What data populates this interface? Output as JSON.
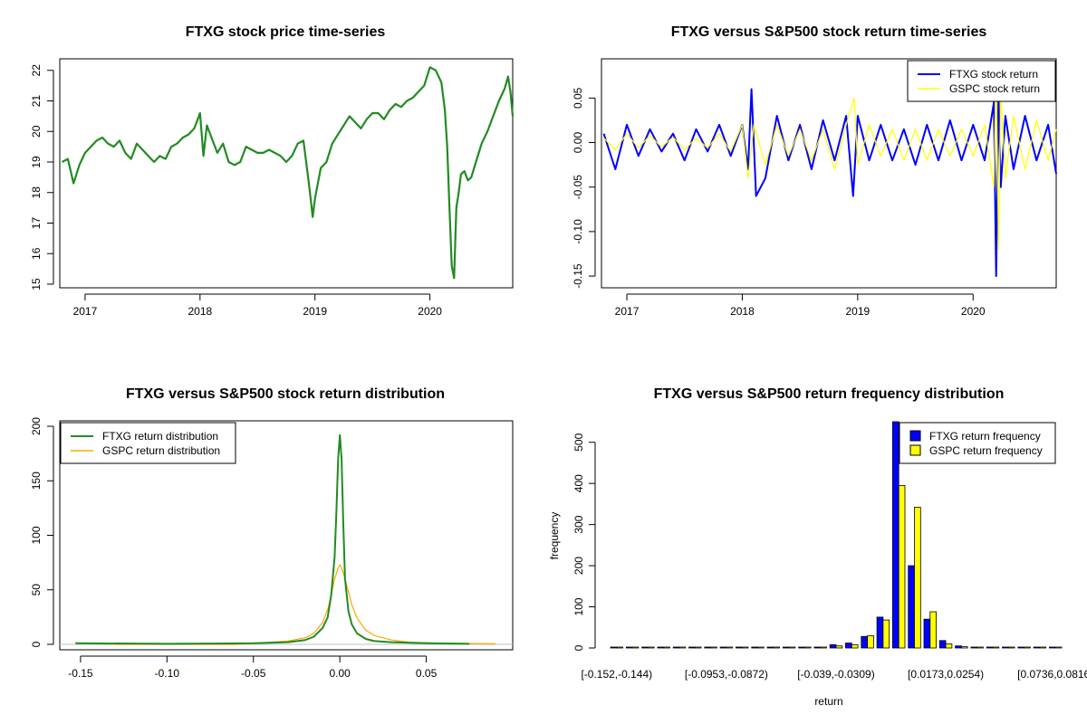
{
  "panels": {
    "price": {
      "title": "FTXG stock price time-series",
      "color": "#228B22"
    },
    "returns": {
      "title": "FTXG versus S&P500 stock return time-series",
      "legend": [
        "FTXG stock return",
        "GSPC stock return"
      ],
      "colors": [
        "#0000FF",
        "#FFFF00"
      ]
    },
    "density": {
      "title": "FTXG versus S&P500 stock return distribution",
      "legend": [
        "FTXG return distribution",
        "GSPC return distribution"
      ],
      "colors": [
        "#228B22",
        "#FFA500"
      ]
    },
    "freq": {
      "title": "FTXG versus S&P500 return frequency distribution",
      "legend": [
        "FTXG return frequency",
        "GSPC return frequency"
      ],
      "colors": [
        "#0000FF",
        "#FFFF00"
      ],
      "xlabel": "return",
      "ylabel": "frequency"
    }
  },
  "chart_data": [
    {
      "type": "line",
      "title": "FTXG stock price time-series",
      "xlim": [
        2016.78,
        2020.72
      ],
      "ylim": [
        15,
        22.2
      ],
      "x_ticks": [
        2017,
        2018,
        2019,
        2020
      ],
      "x_tick_labels": [
        "2017",
        "2018",
        "2019",
        "2020"
      ],
      "y_ticks": [
        15,
        16,
        17,
        18,
        19,
        20,
        21,
        22
      ],
      "y_tick_labels": [
        "15",
        "16",
        "17",
        "18",
        "19",
        "20",
        "21",
        "22"
      ],
      "x": [
        2016.8,
        2016.85,
        2016.9,
        2016.95,
        2017.0,
        2017.05,
        2017.1,
        2017.15,
        2017.2,
        2017.25,
        2017.3,
        2017.35,
        2017.4,
        2017.45,
        2017.5,
        2017.55,
        2017.6,
        2017.65,
        2017.7,
        2017.75,
        2017.8,
        2017.85,
        2017.9,
        2017.95,
        2018.0,
        2018.03,
        2018.06,
        2018.1,
        2018.15,
        2018.2,
        2018.25,
        2018.3,
        2018.35,
        2018.4,
        2018.45,
        2018.5,
        2018.55,
        2018.6,
        2018.65,
        2018.7,
        2018.75,
        2018.8,
        2018.85,
        2018.9,
        2018.95,
        2018.98,
        2019.0,
        2019.05,
        2019.1,
        2019.15,
        2019.2,
        2019.25,
        2019.3,
        2019.35,
        2019.4,
        2019.45,
        2019.5,
        2019.55,
        2019.6,
        2019.65,
        2019.7,
        2019.75,
        2019.8,
        2019.85,
        2019.9,
        2019.95,
        2020.0,
        2020.05,
        2020.1,
        2020.13,
        2020.15,
        2020.17,
        2020.19,
        2020.21,
        2020.23,
        2020.25,
        2020.27,
        2020.3,
        2020.33,
        2020.36,
        2020.4,
        2020.45,
        2020.5,
        2020.55,
        2020.6,
        2020.65,
        2020.68,
        2020.7,
        2020.72
      ],
      "y": [
        19.0,
        19.1,
        18.3,
        18.9,
        19.3,
        19.5,
        19.7,
        19.8,
        19.6,
        19.5,
        19.7,
        19.3,
        19.1,
        19.6,
        19.4,
        19.2,
        19.0,
        19.2,
        19.1,
        19.5,
        19.6,
        19.8,
        19.9,
        20.1,
        20.6,
        19.2,
        20.2,
        19.8,
        19.3,
        19.6,
        19.0,
        18.9,
        19.0,
        19.5,
        19.4,
        19.3,
        19.3,
        19.4,
        19.3,
        19.2,
        19.0,
        19.2,
        19.6,
        19.7,
        18.2,
        17.2,
        17.8,
        18.8,
        19.0,
        19.6,
        19.9,
        20.2,
        20.5,
        20.3,
        20.1,
        20.4,
        20.6,
        20.6,
        20.4,
        20.7,
        20.9,
        20.8,
        21.0,
        21.1,
        21.3,
        21.5,
        22.1,
        22.0,
        21.6,
        20.7,
        19.5,
        17.5,
        15.6,
        15.2,
        17.5,
        18.0,
        18.6,
        18.7,
        18.4,
        18.5,
        19.0,
        19.6,
        20.0,
        20.5,
        21.0,
        21.4,
        21.8,
        21.3,
        20.5
      ]
    },
    {
      "type": "line",
      "title": "FTXG versus S&P500 stock return time-series",
      "xlim": [
        2016.78,
        2020.72
      ],
      "ylim": [
        -0.155,
        0.09
      ],
      "x_ticks": [
        2017,
        2018,
        2019,
        2020
      ],
      "x_tick_labels": [
        "2017",
        "2018",
        "2019",
        "2020"
      ],
      "y_ticks": [
        -0.15,
        -0.1,
        -0.05,
        0.0,
        0.05
      ],
      "y_tick_labels": [
        "-0.15",
        "-0.10",
        "-0.05",
        "0.00",
        "0.05"
      ],
      "series": [
        {
          "name": "FTXG stock return",
          "x": [
            2016.8,
            2016.9,
            2017.0,
            2017.1,
            2017.2,
            2017.3,
            2017.4,
            2017.5,
            2017.6,
            2017.7,
            2017.8,
            2017.9,
            2018.0,
            2018.05,
            2018.08,
            2018.12,
            2018.2,
            2018.3,
            2018.4,
            2018.5,
            2018.6,
            2018.7,
            2018.8,
            2018.9,
            2018.96,
            2019.0,
            2019.1,
            2019.2,
            2019.3,
            2019.4,
            2019.5,
            2019.6,
            2019.7,
            2019.8,
            2019.9,
            2020.0,
            2020.1,
            2020.18,
            2020.2,
            2020.22,
            2020.24,
            2020.28,
            2020.35,
            2020.45,
            2020.55,
            2020.65,
            2020.72
          ],
          "y": [
            0.01,
            -0.03,
            0.02,
            -0.015,
            0.015,
            -0.01,
            0.01,
            -0.02,
            0.015,
            -0.01,
            0.02,
            -0.015,
            0.02,
            -0.03,
            0.06,
            -0.06,
            -0.04,
            0.03,
            -0.02,
            0.02,
            -0.03,
            0.025,
            -0.02,
            0.03,
            -0.06,
            0.03,
            -0.02,
            0.02,
            -0.02,
            0.015,
            -0.025,
            0.02,
            -0.02,
            0.025,
            -0.02,
            0.02,
            -0.02,
            0.045,
            -0.15,
            0.055,
            -0.05,
            0.03,
            -0.03,
            0.03,
            -0.02,
            0.02,
            -0.035
          ]
        },
        {
          "name": "GSPC stock return",
          "x": [
            2016.8,
            2016.9,
            2017.0,
            2017.1,
            2017.2,
            2017.3,
            2017.4,
            2017.5,
            2017.6,
            2017.7,
            2017.8,
            2017.9,
            2018.0,
            2018.05,
            2018.1,
            2018.2,
            2018.3,
            2018.4,
            2018.5,
            2018.6,
            2018.7,
            2018.8,
            2018.9,
            2018.97,
            2019.0,
            2019.1,
            2019.2,
            2019.3,
            2019.4,
            2019.5,
            2019.6,
            2019.7,
            2019.8,
            2019.9,
            2020.0,
            2020.1,
            2020.18,
            2020.2,
            2020.22,
            2020.24,
            2020.28,
            2020.35,
            2020.45,
            2020.55,
            2020.65,
            2020.72
          ],
          "y": [
            0.005,
            -0.008,
            0.01,
            -0.006,
            0.008,
            -0.005,
            0.006,
            -0.008,
            0.005,
            -0.006,
            0.01,
            -0.01,
            0.02,
            -0.04,
            0.02,
            -0.025,
            0.02,
            -0.015,
            0.015,
            -0.02,
            0.015,
            -0.03,
            0.02,
            0.05,
            -0.025,
            0.02,
            -0.015,
            0.015,
            -0.02,
            0.015,
            -0.02,
            0.015,
            -0.015,
            0.015,
            -0.015,
            0.02,
            -0.05,
            0.09,
            -0.12,
            0.06,
            -0.04,
            0.03,
            -0.03,
            0.025,
            -0.02,
            0.015
          ]
        }
      ]
    },
    {
      "type": "line",
      "title": "FTXG versus S&P500 stock return distribution",
      "xlim": [
        -0.162,
        0.1
      ],
      "ylim": [
        -5,
        205
      ],
      "x_ticks": [
        -0.15,
        -0.1,
        -0.05,
        0.0,
        0.05
      ],
      "x_tick_labels": [
        "-0.15",
        "-0.10",
        "-0.05",
        "0.00",
        "0.05"
      ],
      "y_ticks": [
        0,
        50,
        100,
        150,
        200
      ],
      "y_tick_labels": [
        "0",
        "50",
        "100",
        "150",
        "200"
      ],
      "series": [
        {
          "name": "FTXG return distribution",
          "x": [
            -0.153,
            -0.1,
            -0.05,
            -0.03,
            -0.02,
            -0.015,
            -0.01,
            -0.007,
            -0.005,
            -0.003,
            -0.002,
            -0.001,
            0.0,
            0.001,
            0.002,
            0.003,
            0.005,
            0.007,
            0.01,
            0.015,
            0.02,
            0.03,
            0.05,
            0.075
          ],
          "y": [
            1,
            0.5,
            1,
            2,
            4,
            7,
            15,
            25,
            45,
            80,
            120,
            170,
            192,
            170,
            110,
            60,
            30,
            18,
            10,
            5,
            3,
            2,
            1,
            0.5
          ]
        },
        {
          "name": "GSPC return distribution",
          "x": [
            -0.13,
            -0.06,
            -0.05,
            -0.04,
            -0.03,
            -0.02,
            -0.015,
            -0.01,
            -0.007,
            -0.005,
            -0.003,
            -0.001,
            0.0,
            0.001,
            0.003,
            0.005,
            0.007,
            0.01,
            0.015,
            0.02,
            0.03,
            0.04,
            0.06,
            0.09
          ],
          "y": [
            0,
            0,
            1,
            2,
            3,
            6,
            10,
            20,
            32,
            45,
            60,
            70,
            73,
            70,
            60,
            48,
            36,
            24,
            13,
            8,
            4,
            2,
            1,
            0.5
          ]
        }
      ]
    },
    {
      "type": "bar",
      "title": "FTXG versus S&P500 return frequency distribution",
      "xlabel": "return",
      "ylabel": "frequency",
      "ylim": [
        0,
        550
      ],
      "y_ticks": [
        0,
        100,
        200,
        300,
        400,
        500
      ],
      "y_tick_labels": [
        "0",
        "100",
        "200",
        "300",
        "400",
        "500"
      ],
      "category_labels": [
        "[-0.152,-0.144)",
        "[-0.0953,-0.0872)",
        "[-0.039,-0.0309)",
        "[0.0173,0.0254)",
        "[0.0736,0.0816)"
      ],
      "label_bins": [
        0,
        7,
        14,
        21,
        28
      ],
      "series": [
        {
          "name": "FTXG return frequency",
          "values": [
            1,
            0,
            0,
            0,
            0,
            0,
            0,
            0,
            0,
            0,
            1,
            1,
            1,
            2,
            8,
            12,
            28,
            75,
            550,
            200,
            70,
            18,
            5,
            2,
            1,
            1,
            0,
            0,
            0
          ]
        },
        {
          "name": "GSPC return frequency",
          "values": [
            0,
            0,
            0,
            0,
            0,
            0,
            0,
            0,
            0,
            0,
            0,
            0,
            1,
            2,
            5,
            8,
            30,
            68,
            395,
            342,
            88,
            10,
            3,
            2,
            1,
            0,
            0,
            0,
            0
          ]
        }
      ]
    }
  ]
}
